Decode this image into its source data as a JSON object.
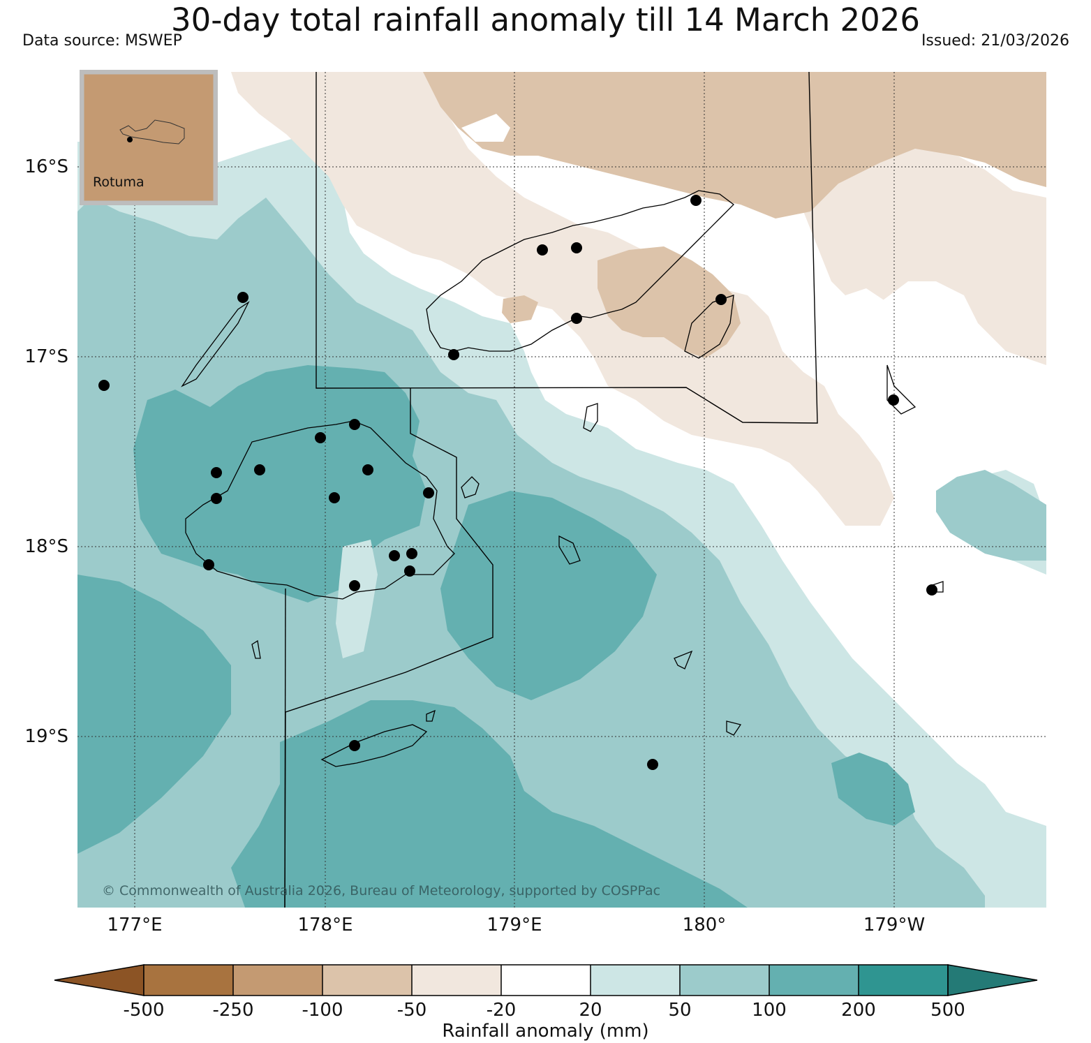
{
  "header": {
    "title": "30-day total rainfall anomaly till 14 March 2026",
    "data_source": "Data source: MSWEP",
    "issued": "Issued: 21/03/2026"
  },
  "map": {
    "lat_labels": [
      "16°S",
      "17°S",
      "18°S",
      "19°S"
    ],
    "lon_labels": [
      "177°E",
      "178°E",
      "179°E",
      "180°",
      "179°W"
    ],
    "inset_label": "Rotuma",
    "copyright": "© Commonwealth of Australia 2026, Bureau of Meteorology, supported by COSPPac"
  },
  "colorbar": {
    "label": "Rainfall anomaly (mm)",
    "ticks": [
      "-500",
      "-250",
      "-100",
      "-50",
      "-20",
      "20",
      "50",
      "100",
      "200",
      "500"
    ],
    "colors": {
      "below_min": "#8c5425",
      "lt_-250": "#a8733f",
      "lt_-100": "#c49a72",
      "lt_-50": "#dcc3aa",
      "lt_-20": "#f1e7de",
      "neutral": "#ffffff",
      "gt_20": "#cde6e5",
      "gt_50": "#9ccbcb",
      "gt_100": "#64b0b0",
      "gt_200": "#2f9591",
      "above_max": "#247a76"
    }
  }
}
